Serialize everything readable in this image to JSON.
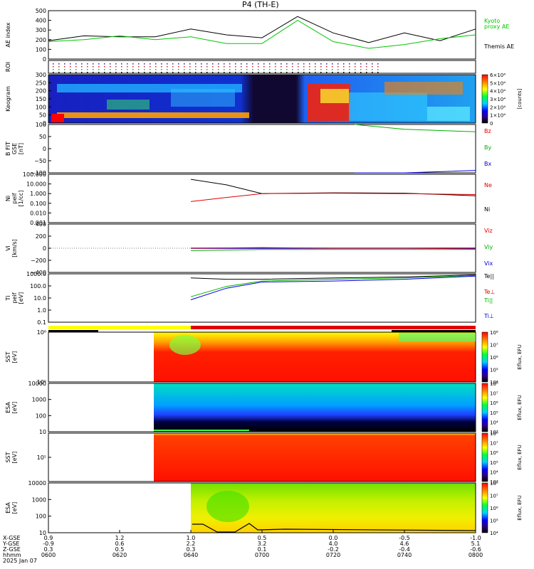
{
  "title": "P4 (TH-E)",
  "colors": {
    "kyoto": "#00c800",
    "themis": "#000000",
    "bz": "#e00000",
    "by": "#00b000",
    "bx": "#0000e0",
    "red": "#e00000",
    "green": "#00b000",
    "blue": "#0000e0",
    "yellow": "#ffff00"
  },
  "panels": {
    "ae": {
      "ylabel": "AE index",
      "ticks": [
        "500",
        "400",
        "300",
        "200",
        "100",
        "0"
      ],
      "legend": [
        "Kyoto",
        "proxy AE",
        "Themis AE"
      ]
    },
    "roi": {
      "ylabel": "ROI"
    },
    "keogram": {
      "ylabel": "Keogram",
      "ticks": [
        "300",
        "250",
        "200",
        "150",
        "100",
        "50",
        "0"
      ],
      "cbar_ticks": [
        "6×10⁴",
        "5×10⁴",
        "4×10⁴",
        "3×10⁴",
        "2×10⁴",
        "1×10⁴",
        "0"
      ],
      "cbar_label": "[counts]"
    },
    "bfield": {
      "ylabel": [
        "B FIT",
        "GSE",
        "[nT]"
      ],
      "ticks": [
        "100",
        "50",
        "0",
        "−50",
        "−100"
      ],
      "legend": [
        "Bz",
        "By",
        "Bx"
      ]
    },
    "density": {
      "ylabel": [
        "Ni",
        "peif",
        "[1/cc]"
      ],
      "ticks": [
        "100.000",
        "10.000",
        "1.000",
        "0.100",
        "0.010",
        "0.001"
      ],
      "legend": [
        "Ne",
        "Ni"
      ]
    },
    "velocity": {
      "ylabel": [
        "Vi",
        "[km/s]"
      ],
      "ticks": [
        "400",
        "200",
        "0",
        "−200",
        "−400"
      ],
      "legend": [
        "Viz",
        "Viy",
        "Vix"
      ]
    },
    "temp": {
      "ylabel": [
        "Ti",
        "peif",
        "[eV]"
      ],
      "ticks": [
        "1000.0",
        "100.0",
        "10.0",
        "1.0",
        "0.1"
      ],
      "legend": [
        "Te||",
        "Te⊥",
        "Ti||",
        "Ti⊥"
      ]
    },
    "sst_i": {
      "ylabel": [
        "SST",
        "[eV]"
      ],
      "ticks": [
        "10⁶",
        "10⁵"
      ],
      "cbar_ticks": [
        "10⁸",
        "10⁷",
        "10⁶",
        "10⁵",
        "10⁴"
      ],
      "cbar_label": "Eflux, EFU"
    },
    "esa_i": {
      "ylabel": [
        "ESA",
        "[eV]"
      ],
      "ticks": [
        "10000",
        "1000",
        "100",
        "10"
      ],
      "cbar_ticks": [
        "10⁸",
        "10⁷",
        "10⁶",
        "10⁵",
        "10⁴",
        "10³"
      ],
      "cbar_label": "Eflux, EFU"
    },
    "sst_e": {
      "ylabel": [
        "SST",
        "[eV]"
      ],
      "ticks": [
        "10⁵"
      ],
      "cbar_ticks": [
        "10⁸",
        "10⁷",
        "10⁶",
        "10⁵",
        "10⁴",
        "10³"
      ],
      "cbar_label": "Eflux, EFU"
    },
    "esa_e": {
      "ylabel": [
        "ESA",
        "[eV]"
      ],
      "ticks": [
        "10000",
        "1000",
        "100",
        "10"
      ],
      "cbar_ticks": [
        "10⁸",
        "10⁷",
        "10⁶",
        "10⁵",
        "10⁴"
      ],
      "cbar_label": "Eflux, EFU"
    }
  },
  "footer": {
    "row_labels": [
      "X-GSE",
      "Y-GSE",
      "Z-GSE",
      "hhmm",
      "2025 Jan 07"
    ],
    "columns": [
      {
        "x": "0.9",
        "y": "-0.9",
        "z": "0.3",
        "t": "0600"
      },
      {
        "x": "1.2",
        "y": "0.6",
        "z": "0.5",
        "t": "0620"
      },
      {
        "x": "1.0",
        "y": "2.2",
        "z": "0.3",
        "t": "0640"
      },
      {
        "x": "0.5",
        "y": "3.2",
        "z": "0.1",
        "t": "0700"
      },
      {
        "x": "0.0",
        "y": "4.0",
        "z": "-0.2",
        "t": "0720"
      },
      {
        "x": "-0.5",
        "y": "4.6",
        "z": "-0.4",
        "t": "0740"
      },
      {
        "x": "-1.0",
        "y": "5.1",
        "z": "-0.6",
        "t": "0800"
      }
    ]
  },
  "chart_data": [
    {
      "type": "line",
      "panel": "ae",
      "ylabel": "AE index",
      "ylim": [
        0,
        500
      ],
      "x": [
        "0600",
        "0610",
        "0620",
        "0630",
        "0640",
        "0650",
        "0700",
        "0710",
        "0720",
        "0730",
        "0740",
        "0750",
        "0800"
      ],
      "series": [
        {
          "name": "Themis AE",
          "values": [
            190,
            240,
            230,
            230,
            310,
            250,
            220,
            440,
            270,
            170,
            270,
            190,
            310
          ]
        },
        {
          "name": "Kyoto proxy AE",
          "values": [
            180,
            200,
            240,
            200,
            230,
            160,
            160,
            400,
            180,
            110,
            150,
            210,
            250
          ]
        }
      ]
    },
    {
      "type": "line",
      "panel": "bfield",
      "ylabel": "B FIT GSE [nT]",
      "ylim": [
        -100,
        100
      ],
      "x": [
        "0726",
        "0740",
        "0800"
      ],
      "series": [
        {
          "name": "Bz",
          "values": [
            100,
            80,
            70
          ]
        },
        {
          "name": "Bx",
          "values": [
            -100,
            -100,
            -90
          ]
        }
      ]
    },
    {
      "type": "line",
      "panel": "density",
      "ylabel": "Ni peif [1/cc]",
      "ylim": [
        0.001,
        100
      ],
      "x": [
        "0640",
        "0650",
        "0700",
        "0720",
        "0740",
        "0800"
      ],
      "series": [
        {
          "name": "Ni",
          "values": [
            30,
            8,
            1.0,
            1.2,
            1.1,
            0.6
          ]
        },
        {
          "name": "Ne",
          "values": [
            0.15,
            0.4,
            1.0,
            1.1,
            1.0,
            0.8
          ]
        }
      ]
    },
    {
      "type": "line",
      "panel": "velocity",
      "ylabel": "Vi [km/s]",
      "ylim": [
        -400,
        400
      ],
      "x": [
        "0640",
        "0700",
        "0720",
        "0740",
        "0800"
      ],
      "series": [
        {
          "name": "Viz",
          "values": [
            0,
            10,
            0,
            0,
            -10
          ]
        },
        {
          "name": "Viy",
          "values": [
            -40,
            -20,
            -20,
            -20,
            -20
          ]
        },
        {
          "name": "Vix",
          "values": [
            0,
            0,
            0,
            0,
            0
          ]
        }
      ]
    },
    {
      "type": "line",
      "panel": "temp",
      "ylabel": "Ti peif [eV]",
      "ylim": [
        0.1,
        5000
      ],
      "x": [
        "0640",
        "0650",
        "0700",
        "0720",
        "0740",
        "0800"
      ],
      "series": [
        {
          "name": "Te||",
          "values": [
            2000,
            1500,
            1500,
            2000,
            2500,
            4000
          ]
        },
        {
          "name": "Ti||",
          "values": [
            30,
            300,
            1000,
            1500,
            2000,
            3500
          ]
        },
        {
          "name": "Ti⊥",
          "values": [
            15,
            200,
            800,
            1000,
            1500,
            3000
          ]
        }
      ]
    }
  ]
}
